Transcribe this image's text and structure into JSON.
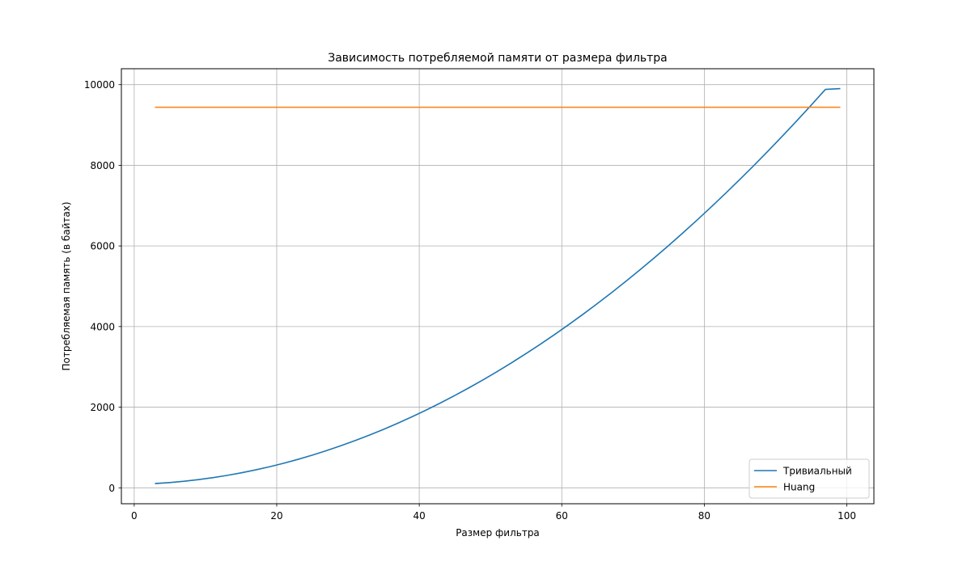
{
  "chart_data": {
    "type": "line",
    "title": "Зависимость потребляемой памяти от размера фильтра",
    "xlabel": "Размер фильтра",
    "ylabel": "Потребляемая память (в байтах)",
    "xlim": [
      -1.8,
      103.8
    ],
    "ylim": [
      -395,
      10395
    ],
    "xticks": [
      0,
      20,
      40,
      60,
      80,
      100
    ],
    "yticks": [
      0,
      2000,
      4000,
      6000,
      8000,
      10000
    ],
    "grid": true,
    "legend_position": "lower-right",
    "series": [
      {
        "name": "Тривиальный",
        "color": "#1f77b4",
        "x": [
          3,
          5,
          7,
          9,
          11,
          13,
          15,
          17,
          19,
          21,
          23,
          25,
          27,
          29,
          31,
          33,
          35,
          37,
          39,
          41,
          43,
          45,
          47,
          49,
          51,
          53,
          55,
          57,
          59,
          61,
          63,
          65,
          67,
          69,
          71,
          73,
          75,
          77,
          79,
          81,
          83,
          85,
          87,
          89,
          91,
          93,
          95,
          97,
          99
        ],
        "y": [
          107,
          131,
          163,
          203,
          251,
          307,
          371,
          443,
          523,
          611,
          707,
          811,
          923,
          1043,
          1171,
          1307,
          1451,
          1603,
          1763,
          1931,
          2107,
          2291,
          2483,
          2683,
          2891,
          3107,
          3331,
          3563,
          3803,
          4051,
          4307,
          4571,
          4843,
          5123,
          5411,
          5707,
          6011,
          6323,
          6643,
          6971,
          7307,
          7651,
          8003,
          8363,
          8731,
          9107,
          9491,
          9883,
          9901
        ]
      },
      {
        "name": "Huang",
        "color": "#ff7f0e",
        "x": [
          3,
          99
        ],
        "y": [
          9440,
          9440
        ]
      }
    ]
  }
}
